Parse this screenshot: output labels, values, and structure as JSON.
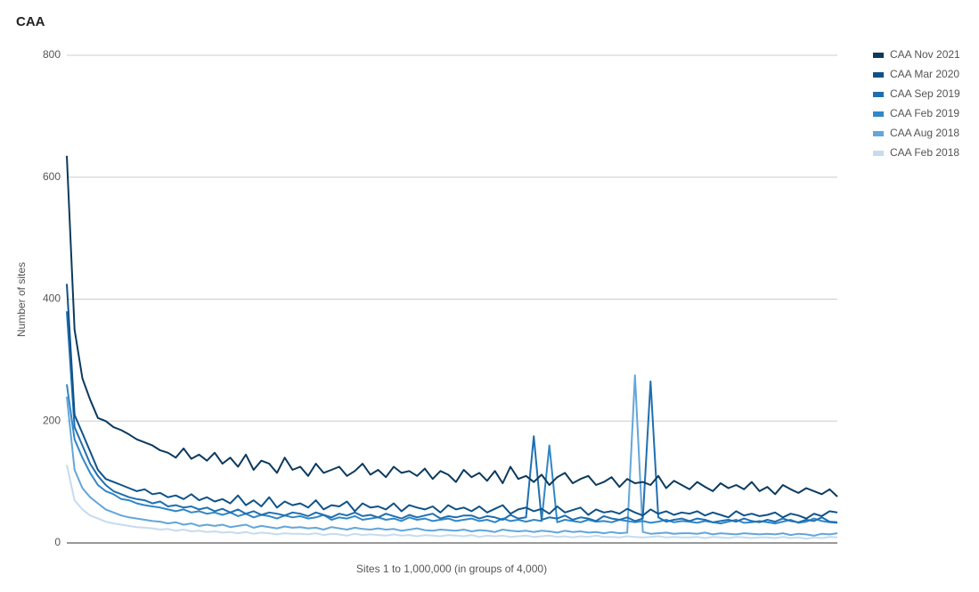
{
  "chart_data": {
    "type": "line",
    "title": "CAA",
    "y_label": "Number of sites",
    "x_label": "Sites 1 to 1,000,000 (in groups of 4,000)",
    "ylim": [
      0,
      800
    ],
    "yticks": [
      0,
      200,
      400,
      600,
      800
    ],
    "grid": true,
    "legend": "right",
    "series": [
      {
        "name": "CAA Nov 2021",
        "color": "#0b3a5e",
        "values": [
          635,
          350,
          270,
          235,
          205,
          200,
          190,
          185,
          178,
          170,
          165,
          160,
          152,
          148,
          140,
          155,
          138,
          145,
          135,
          148,
          130,
          140,
          125,
          145,
          120,
          135,
          130,
          115,
          140,
          120,
          125,
          110,
          130,
          115,
          120,
          125,
          110,
          118,
          130,
          112,
          120,
          108,
          125,
          115,
          118,
          110,
          122,
          105,
          118,
          112,
          100,
          120,
          108,
          115,
          102,
          118,
          98,
          125,
          105,
          110,
          100,
          112,
          95,
          108,
          115,
          98,
          105,
          110,
          95,
          100,
          108,
          92,
          105,
          98,
          100,
          95,
          110,
          90,
          102,
          95,
          88,
          100,
          92,
          85,
          98,
          90,
          95,
          88,
          100,
          85,
          92,
          80,
          95,
          88,
          82,
          90,
          85,
          80,
          88,
          76
        ]
      },
      {
        "name": "CAA Mar 2020",
        "color": "#0f5288",
        "values": [
          425,
          210,
          180,
          150,
          120,
          105,
          100,
          95,
          90,
          85,
          88,
          80,
          82,
          75,
          78,
          72,
          80,
          70,
          75,
          68,
          72,
          65,
          78,
          62,
          70,
          60,
          75,
          58,
          68,
          62,
          65,
          58,
          70,
          55,
          62,
          60,
          68,
          52,
          65,
          58,
          60,
          55,
          65,
          52,
          62,
          58,
          55,
          60,
          50,
          62,
          55,
          58,
          52,
          60,
          50,
          56,
          62,
          48,
          55,
          58,
          52,
          56,
          48,
          60,
          50,
          54,
          58,
          46,
          55,
          50,
          52,
          48,
          56,
          50,
          45,
          55,
          48,
          52,
          46,
          50,
          48,
          52,
          45,
          50,
          46,
          42,
          52,
          45,
          48,
          44,
          46,
          50,
          42,
          48,
          45,
          40,
          48,
          44,
          52,
          50
        ]
      },
      {
        "name": "CAA Sep 2019",
        "color": "#1f6fb0",
        "values": [
          380,
          190,
          160,
          130,
          110,
          95,
          85,
          80,
          75,
          72,
          70,
          65,
          68,
          60,
          62,
          58,
          60,
          55,
          58,
          52,
          56,
          50,
          55,
          48,
          52,
          46,
          50,
          48,
          45,
          50,
          48,
          44,
          50,
          46,
          42,
          48,
          45,
          50,
          44,
          46,
          42,
          48,
          44,
          40,
          46,
          42,
          45,
          48,
          40,
          44,
          42,
          45,
          45,
          40,
          44,
          42,
          38,
          46,
          40,
          42,
          175,
          38,
          42,
          40,
          45,
          38,
          42,
          40,
          36,
          44,
          40,
          38,
          42,
          36,
          40,
          265,
          42,
          35,
          38,
          40,
          36,
          40,
          38,
          34,
          36,
          38,
          35,
          40,
          36,
          34,
          38,
          35,
          40,
          36,
          34,
          38,
          36,
          42,
          35,
          34
        ]
      },
      {
        "name": "CAA Feb 2019",
        "color": "#3187c8",
        "values": [
          260,
          170,
          140,
          115,
          95,
          85,
          80,
          72,
          70,
          65,
          62,
          60,
          58,
          55,
          52,
          55,
          50,
          52,
          48,
          50,
          46,
          50,
          44,
          48,
          42,
          46,
          44,
          40,
          45,
          42,
          44,
          40,
          42,
          46,
          38,
          42,
          40,
          44,
          38,
          40,
          42,
          38,
          40,
          36,
          42,
          38,
          40,
          36,
          38,
          40,
          36,
          38,
          40,
          36,
          38,
          34,
          40,
          36,
          38,
          35,
          38,
          36,
          160,
          34,
          38,
          36,
          34,
          38,
          35,
          36,
          34,
          38,
          36,
          34,
          36,
          33,
          35,
          38,
          34,
          36,
          35,
          33,
          36,
          34,
          32,
          35,
          38,
          33,
          34,
          36,
          34,
          32,
          35,
          38,
          33,
          35,
          40,
          36,
          34,
          33
        ]
      },
      {
        "name": "CAA Aug 2018",
        "color": "#63a6da",
        "values": [
          240,
          120,
          90,
          75,
          65,
          55,
          50,
          45,
          42,
          40,
          38,
          36,
          35,
          32,
          34,
          30,
          32,
          28,
          30,
          28,
          30,
          26,
          28,
          30,
          25,
          28,
          26,
          24,
          27,
          25,
          26,
          24,
          25,
          22,
          26,
          24,
          22,
          25,
          23,
          22,
          24,
          22,
          23,
          20,
          22,
          24,
          21,
          20,
          22,
          21,
          20,
          22,
          19,
          21,
          20,
          18,
          22,
          20,
          19,
          20,
          18,
          20,
          19,
          17,
          20,
          18,
          19,
          17,
          18,
          16,
          18,
          16,
          17,
          275,
          18,
          15,
          16,
          17,
          15,
          16,
          16,
          15,
          17,
          14,
          16,
          15,
          14,
          16,
          15,
          14,
          15,
          14,
          16,
          13,
          15,
          14,
          12,
          15,
          14,
          16
        ]
      },
      {
        "name": "CAA Feb 2018",
        "color": "#c6dbef",
        "values": [
          128,
          70,
          55,
          45,
          40,
          35,
          32,
          30,
          28,
          26,
          25,
          24,
          22,
          23,
          20,
          22,
          19,
          20,
          18,
          19,
          17,
          18,
          16,
          18,
          15,
          17,
          16,
          14,
          16,
          15,
          15,
          14,
          16,
          13,
          15,
          14,
          12,
          15,
          13,
          14,
          13,
          12,
          14,
          12,
          13,
          11,
          13,
          12,
          11,
          13,
          12,
          11,
          13,
          10,
          12,
          11,
          12,
          10,
          11,
          12,
          10,
          11,
          12,
          10,
          11,
          9,
          11,
          10,
          12,
          10,
          10,
          9,
          11,
          10,
          9,
          10,
          11,
          9,
          10,
          9,
          9,
          10,
          8,
          10,
          9,
          8,
          10,
          9,
          8,
          9,
          9,
          8,
          10,
          8,
          9,
          7,
          9,
          8,
          10,
          9
        ]
      }
    ]
  }
}
